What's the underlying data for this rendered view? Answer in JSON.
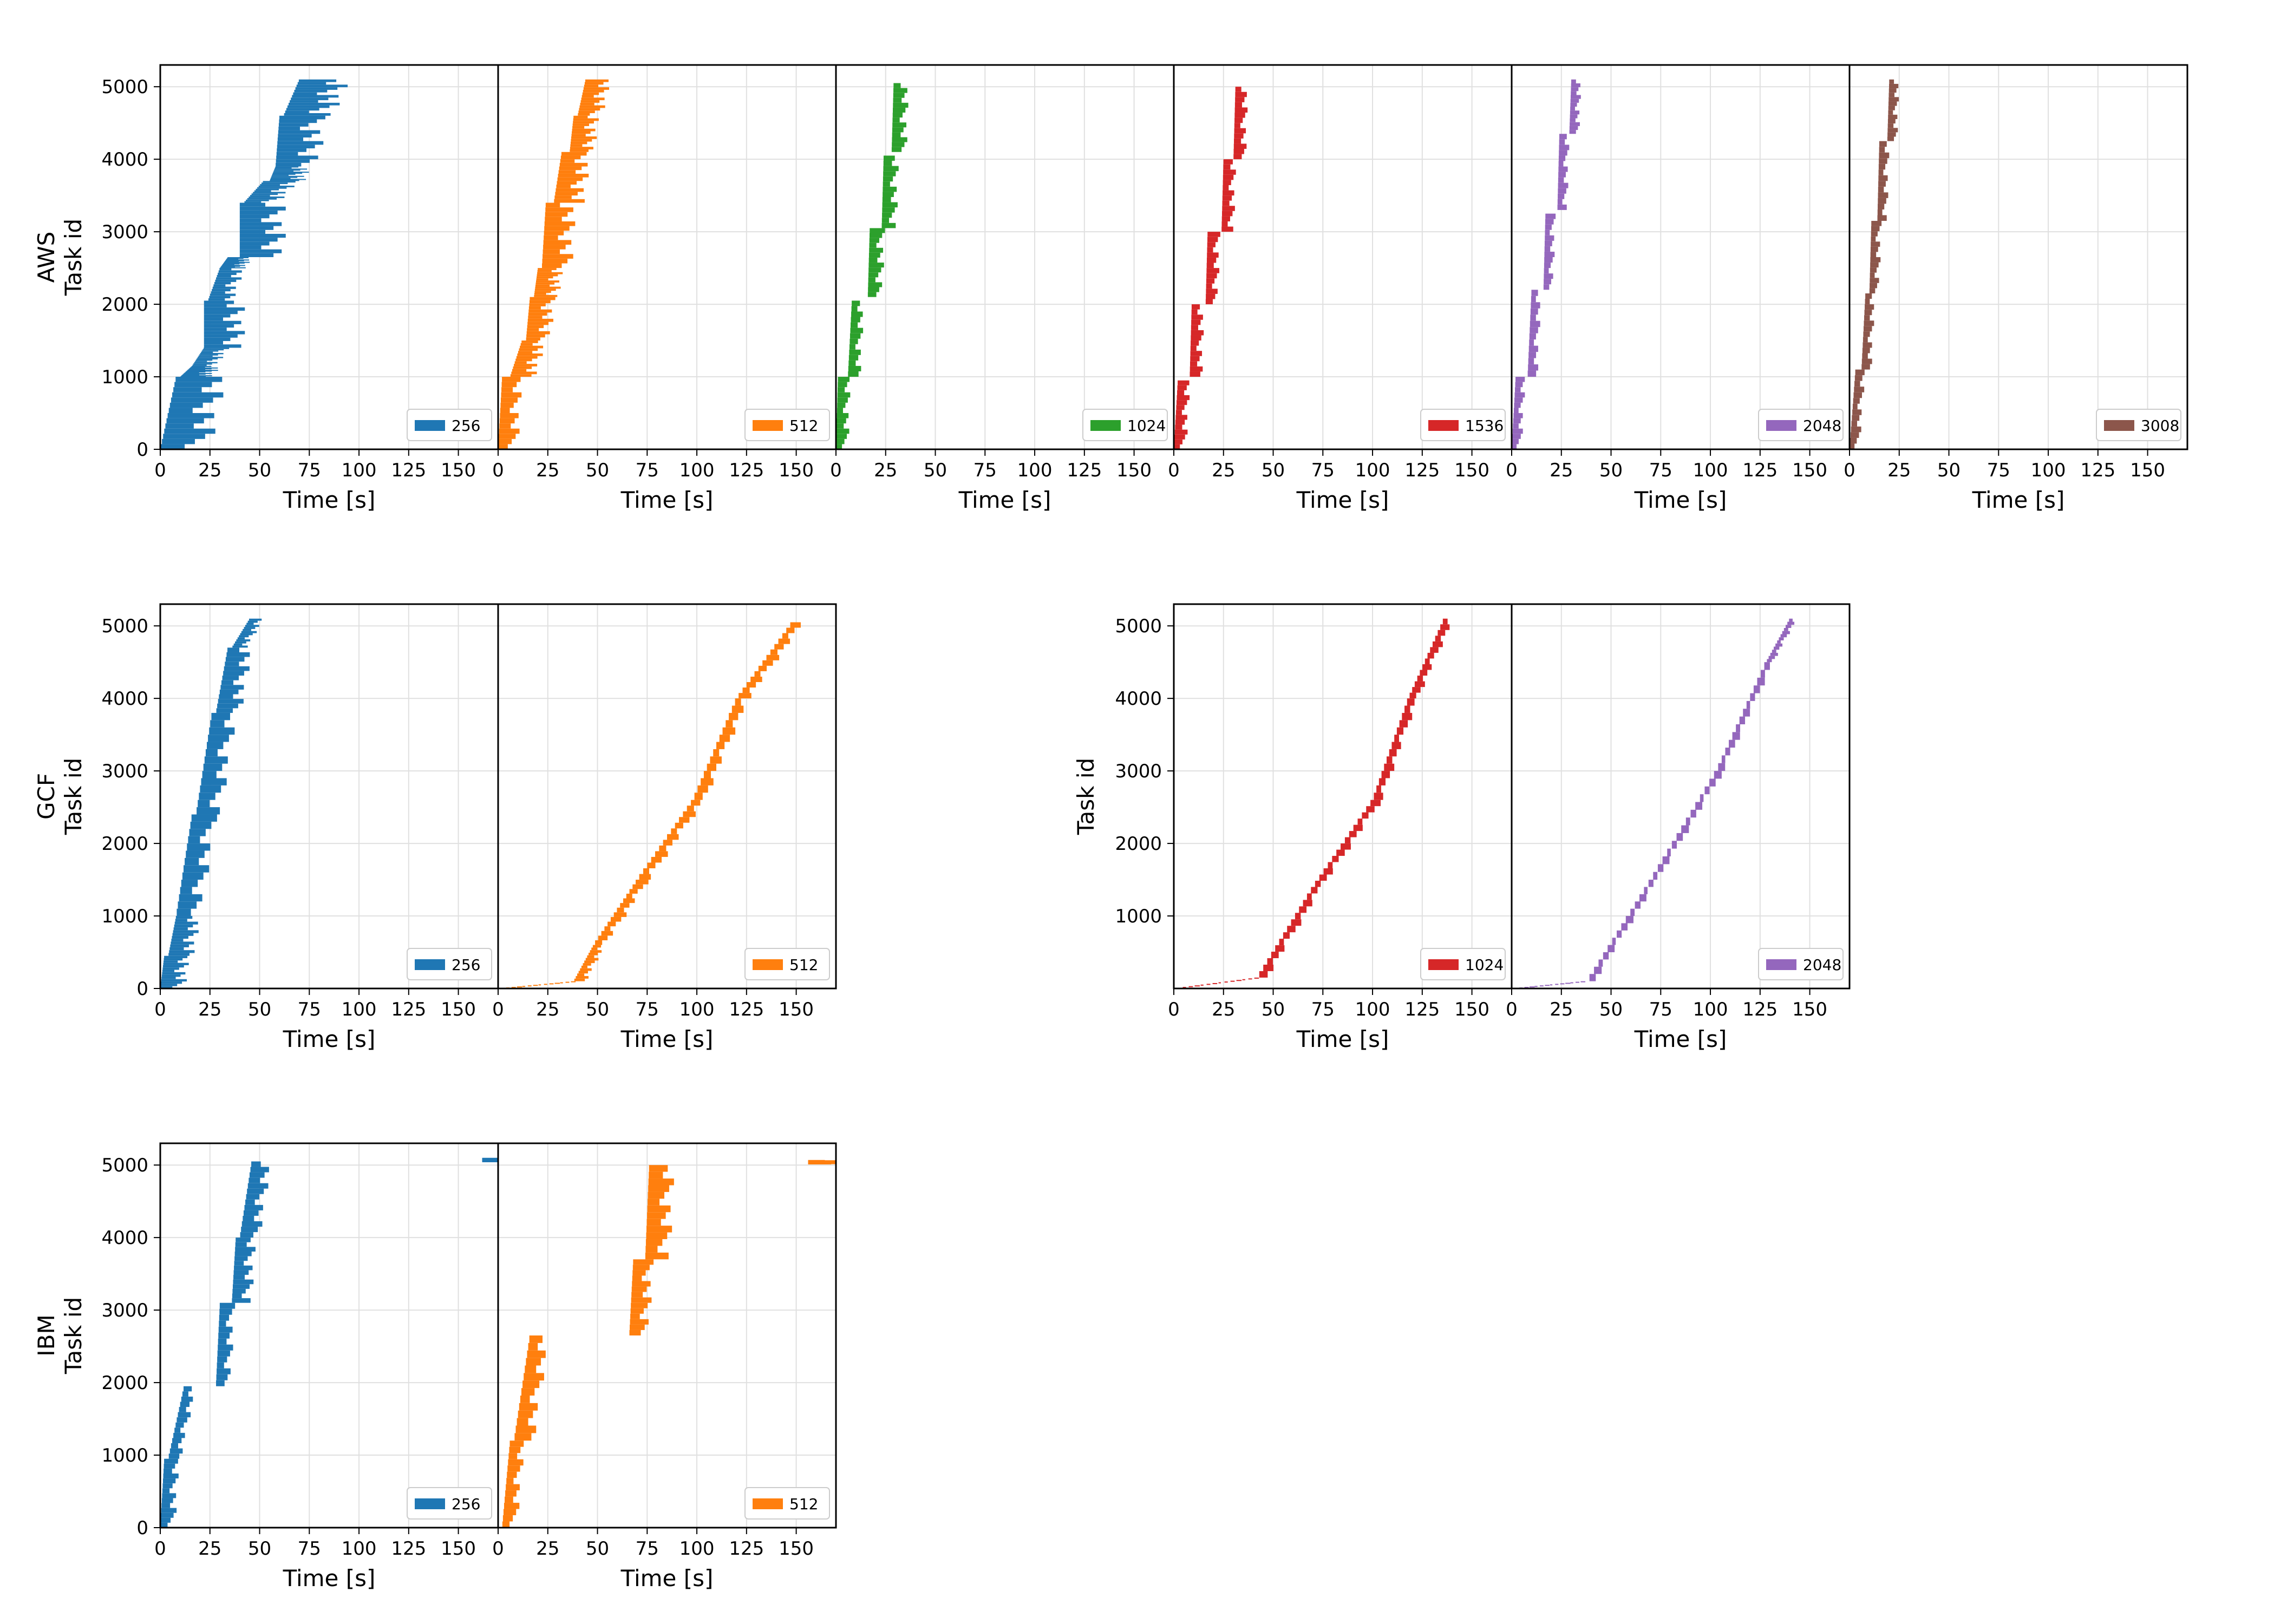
{
  "figure": {
    "axis_label_x": "Time [s]",
    "axis_label_y": "Task id",
    "x_ticks": [
      0,
      25,
      50,
      75,
      100,
      125,
      150
    ],
    "xlim": [
      0,
      170
    ],
    "ylim": [
      0,
      5300
    ]
  },
  "colors": {
    "256": "#1f77b4",
    "512": "#ff7f0e",
    "1024": "#2ca02c",
    "1536": "#d62728",
    "2048": "#9467bd",
    "3008": "#8c564b",
    "1024_gcf": "#d62728",
    "2048_gcf": "#9467bd"
  },
  "chart_data": [
    {
      "type": "bar",
      "provider": "AWS",
      "y_ticks": [
        0,
        1000,
        2000,
        3000,
        4000,
        5000
      ],
      "panels": [
        {
          "name": "256",
          "color_key": "256",
          "segments": [
            {
              "t0": 0,
              "t1": 1000,
              "s0": 0,
              "s1": 8,
              "w": 20
            },
            {
              "t0": 1000,
              "t1": 1150,
              "s0": 10,
              "s1": 16,
              "w": 12
            },
            {
              "t0": 1150,
              "t1": 1400,
              "s0": 16,
              "s1": 22,
              "w": 10
            },
            {
              "t0": 1400,
              "t1": 2050,
              "s0": 22,
              "s1": 22,
              "w": 16
            },
            {
              "t0": 2050,
              "t1": 2500,
              "s0": 24,
              "s1": 30,
              "w": 10
            },
            {
              "t0": 2500,
              "t1": 2650,
              "s0": 30,
              "s1": 34,
              "w": 10
            },
            {
              "t0": 2650,
              "t1": 3400,
              "s0": 40,
              "s1": 40,
              "w": 18
            },
            {
              "t0": 3400,
              "t1": 3700,
              "s0": 42,
              "s1": 52,
              "w": 14
            },
            {
              "t0": 3700,
              "t1": 3900,
              "s0": 55,
              "s1": 58,
              "w": 14
            },
            {
              "t0": 3900,
              "t1": 4600,
              "s0": 58,
              "s1": 60,
              "w": 18
            },
            {
              "t0": 4600,
              "t1": 5100,
              "s0": 62,
              "s1": 70,
              "w": 20
            }
          ]
        },
        {
          "name": "512",
          "color_key": "512",
          "segments": [
            {
              "t0": 0,
              "t1": 1000,
              "s0": 0,
              "s1": 2,
              "w": 8
            },
            {
              "t0": 1000,
              "t1": 1500,
              "s0": 6,
              "s1": 12,
              "w": 10
            },
            {
              "t0": 1500,
              "t1": 2100,
              "s0": 14,
              "s1": 16,
              "w": 10
            },
            {
              "t0": 2100,
              "t1": 2500,
              "s0": 18,
              "s1": 20,
              "w": 10
            },
            {
              "t0": 2500,
              "t1": 3400,
              "s0": 22,
              "s1": 24,
              "w": 12
            },
            {
              "t0": 3400,
              "t1": 4100,
              "s0": 28,
              "s1": 32,
              "w": 12
            },
            {
              "t0": 4100,
              "t1": 4600,
              "s0": 36,
              "s1": 38,
              "w": 10
            },
            {
              "t0": 4600,
              "t1": 5100,
              "s0": 40,
              "s1": 44,
              "w": 10
            }
          ]
        },
        {
          "name": "1024",
          "color_key": "1024",
          "segments": [
            {
              "t0": 0,
              "t1": 1000,
              "s0": 0,
              "s1": 1,
              "w": 5
            },
            {
              "t0": 1000,
              "t1": 2050,
              "s0": 6,
              "s1": 8,
              "w": 5
            },
            {
              "t0": 2100,
              "t1": 3050,
              "s0": 16,
              "s1": 17,
              "w": 6
            },
            {
              "t0": 3050,
              "t1": 4050,
              "s0": 23,
              "s1": 24,
              "w": 6
            },
            {
              "t0": 4100,
              "t1": 5050,
              "s0": 28,
              "s1": 29,
              "w": 6
            }
          ]
        },
        {
          "name": "1536",
          "color_key": "1536",
          "segments": [
            {
              "t0": 0,
              "t1": 950,
              "s0": 0,
              "s1": 2,
              "w": 5
            },
            {
              "t0": 1000,
              "t1": 2000,
              "s0": 8,
              "s1": 9,
              "w": 5
            },
            {
              "t0": 2000,
              "t1": 3000,
              "s0": 16,
              "s1": 17,
              "w": 5
            },
            {
              "t0": 3000,
              "t1": 4000,
              "s0": 24,
              "s1": 25,
              "w": 5
            },
            {
              "t0": 4000,
              "t1": 5000,
              "s0": 30,
              "s1": 31,
              "w": 5
            }
          ]
        },
        {
          "name": "2048",
          "color_key": "2048",
          "segments": [
            {
              "t0": 0,
              "t1": 1000,
              "s0": 0,
              "s1": 2,
              "w": 4
            },
            {
              "t0": 1000,
              "t1": 2200,
              "s0": 8,
              "s1": 10,
              "w": 4
            },
            {
              "t0": 2200,
              "t1": 3250,
              "s0": 16,
              "s1": 17,
              "w": 4
            },
            {
              "t0": 3300,
              "t1": 4350,
              "s0": 23,
              "s1": 24,
              "w": 4
            },
            {
              "t0": 4350,
              "t1": 5100,
              "s0": 29,
              "s1": 30,
              "w": 4
            }
          ]
        },
        {
          "name": "3008",
          "color_key": "3008",
          "segments": [
            {
              "t0": 0,
              "t1": 1100,
              "s0": 0,
              "s1": 3,
              "w": 4
            },
            {
              "t0": 1100,
              "t1": 2150,
              "s0": 6,
              "s1": 8,
              "w": 4
            },
            {
              "t0": 2150,
              "t1": 3150,
              "s0": 10,
              "s1": 11,
              "w": 4
            },
            {
              "t0": 3150,
              "t1": 4250,
              "s0": 14,
              "s1": 15,
              "w": 4
            },
            {
              "t0": 4250,
              "t1": 5100,
              "s0": 19,
              "s1": 20,
              "w": 4
            }
          ]
        }
      ]
    },
    {
      "type": "bar",
      "provider": "GCF",
      "y_ticks": [
        0,
        1000,
        2000,
        3000,
        4000,
        5000
      ],
      "panels": [
        {
          "name": "256",
          "color_key": "256",
          "segments": [
            {
              "t0": 0,
              "t1": 450,
              "s0": 0,
              "s1": 2,
              "w": 10
            },
            {
              "t0": 450,
              "t1": 1000,
              "s0": 4,
              "s1": 8,
              "w": 10
            },
            {
              "t0": 1000,
              "t1": 2400,
              "s0": 8,
              "s1": 16,
              "w": 10
            },
            {
              "t0": 2400,
              "t1": 3800,
              "s0": 18,
              "s1": 26,
              "w": 10
            },
            {
              "t0": 3800,
              "t1": 4700,
              "s0": 28,
              "s1": 34,
              "w": 10
            },
            {
              "t0": 4700,
              "t1": 5100,
              "s0": 36,
              "s1": 45,
              "w": 6
            }
          ]
        },
        {
          "name": "512",
          "color_key": "512",
          "segments": [
            {
              "t0": 0,
              "t1": 100,
              "s0": 0,
              "s1": 38,
              "w": 2
            },
            {
              "t0": 100,
              "t1": 600,
              "s0": 38,
              "s1": 48,
              "w": 5
            },
            {
              "t0": 600,
              "t1": 1500,
              "s0": 48,
              "s1": 70,
              "w": 5
            },
            {
              "t0": 1500,
              "t1": 2600,
              "s0": 70,
              "s1": 98,
              "w": 5
            },
            {
              "t0": 2600,
              "t1": 4000,
              "s0": 98,
              "s1": 120,
              "w": 5
            },
            {
              "t0": 4000,
              "t1": 5050,
              "s0": 120,
              "s1": 148,
              "w": 5
            }
          ]
        }
      ]
    },
    {
      "type": "bar",
      "provider": "",
      "y_ticks": [
        1000,
        2000,
        3000,
        4000,
        5000
      ],
      "panels": [
        {
          "name": "1024",
          "color_key": "1024_gcf",
          "segments": [
            {
              "t0": 0,
              "t1": 150,
              "s0": 0,
              "s1": 42,
              "w": 2
            },
            {
              "t0": 150,
              "t1": 1400,
              "s0": 42,
              "s1": 70,
              "w": 4
            },
            {
              "t0": 1400,
              "t1": 2600,
              "s0": 70,
              "s1": 100,
              "w": 4
            },
            {
              "t0": 2600,
              "t1": 4000,
              "s0": 100,
              "s1": 118,
              "w": 4
            },
            {
              "t0": 4000,
              "t1": 5100,
              "s0": 118,
              "s1": 136,
              "w": 4
            }
          ]
        },
        {
          "name": "2048",
          "color_key": "2048_gcf",
          "segments": [
            {
              "t0": 0,
              "t1": 100,
              "s0": 0,
              "s1": 36,
              "w": 2
            },
            {
              "t0": 100,
              "t1": 1500,
              "s0": 38,
              "s1": 70,
              "w": 3
            },
            {
              "t0": 1500,
              "t1": 3000,
              "s0": 70,
              "s1": 103,
              "w": 3
            },
            {
              "t0": 3000,
              "t1": 4500,
              "s0": 103,
              "s1": 128,
              "w": 3
            },
            {
              "t0": 4500,
              "t1": 5100,
              "s0": 128,
              "s1": 140,
              "w": 3
            }
          ]
        }
      ]
    },
    {
      "type": "bar",
      "provider": "IBM",
      "y_ticks": [
        0,
        1000,
        2000,
        3000,
        4000,
        5000
      ],
      "panels": [
        {
          "name": "256",
          "color_key": "256",
          "segments": [
            {
              "t0": 0,
              "t1": 950,
              "s0": 0,
              "s1": 2,
              "w": 6
            },
            {
              "t0": 950,
              "t1": 1950,
              "s0": 4,
              "s1": 12,
              "w": 5
            },
            {
              "t0": 1950,
              "t1": 3100,
              "s0": 28,
              "s1": 30,
              "w": 6
            },
            {
              "t0": 3100,
              "t1": 4000,
              "s0": 36,
              "s1": 38,
              "w": 8
            },
            {
              "t0": 4000,
              "t1": 5050,
              "s0": 40,
              "s1": 46,
              "w": 8
            },
            {
              "t0": 5050,
              "t1": 5100,
              "s0": 162,
              "s1": 162,
              "w": 8
            }
          ]
        },
        {
          "name": "512",
          "color_key": "512",
          "segments": [
            {
              "t0": 0,
              "t1": 1200,
              "s0": 2,
              "s1": 6,
              "w": 6
            },
            {
              "t0": 1200,
              "t1": 2650,
              "s0": 8,
              "s1": 16,
              "w": 8
            },
            {
              "t0": 2650,
              "t1": 3700,
              "s0": 66,
              "s1": 68,
              "w": 8
            },
            {
              "t0": 3700,
              "t1": 5000,
              "s0": 74,
              "s1": 76,
              "w": 10
            },
            {
              "t0": 5020,
              "t1": 5070,
              "s0": 156,
              "s1": 156,
              "w": 14
            }
          ]
        }
      ]
    }
  ]
}
